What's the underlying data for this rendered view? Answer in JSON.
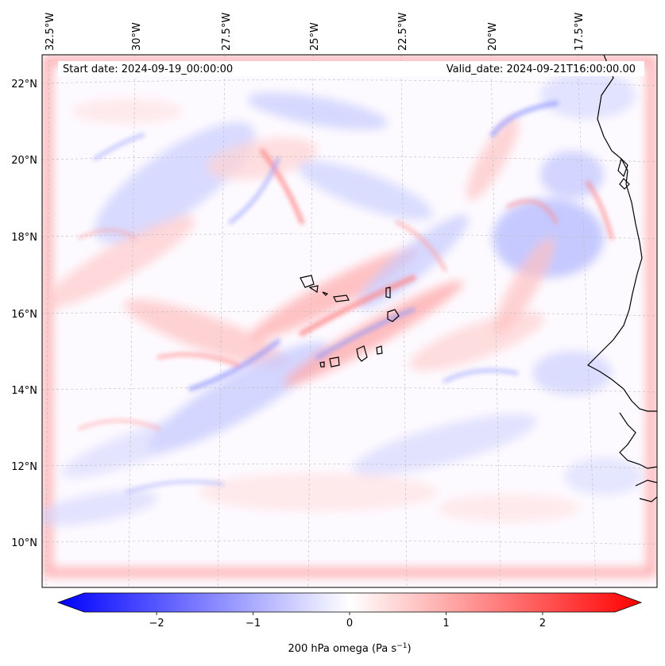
{
  "map": {
    "start_label": "Start date: 2024-09-19_00:00:00",
    "valid_label": "Valid_date: 2024-09-21T16:00:00.00",
    "lon_labels": [
      "32.5°W",
      "30°W",
      "27.5°W",
      "25°W",
      "22.5°W",
      "20°W",
      "17.5°W"
    ],
    "lat_labels": [
      "22°N",
      "20°N",
      "18°N",
      "16°N",
      "14°N",
      "12°N",
      "10°N"
    ],
    "colors": {
      "negative": "#0000ff",
      "neutral": "#ffffff",
      "positive": "#ff0000",
      "coast": "#000000",
      "grid": "#bbbbbb"
    }
  },
  "colorbar": {
    "ticks": [
      "−2",
      "−1",
      "0",
      "1",
      "2"
    ],
    "tick_values": [
      -2,
      -1,
      0,
      1,
      2
    ],
    "vmin": -2.75,
    "vmax": 2.75,
    "label_main": "200 hPa omega (Pa s",
    "label_exp": "−1",
    "label_end": ")"
  }
}
